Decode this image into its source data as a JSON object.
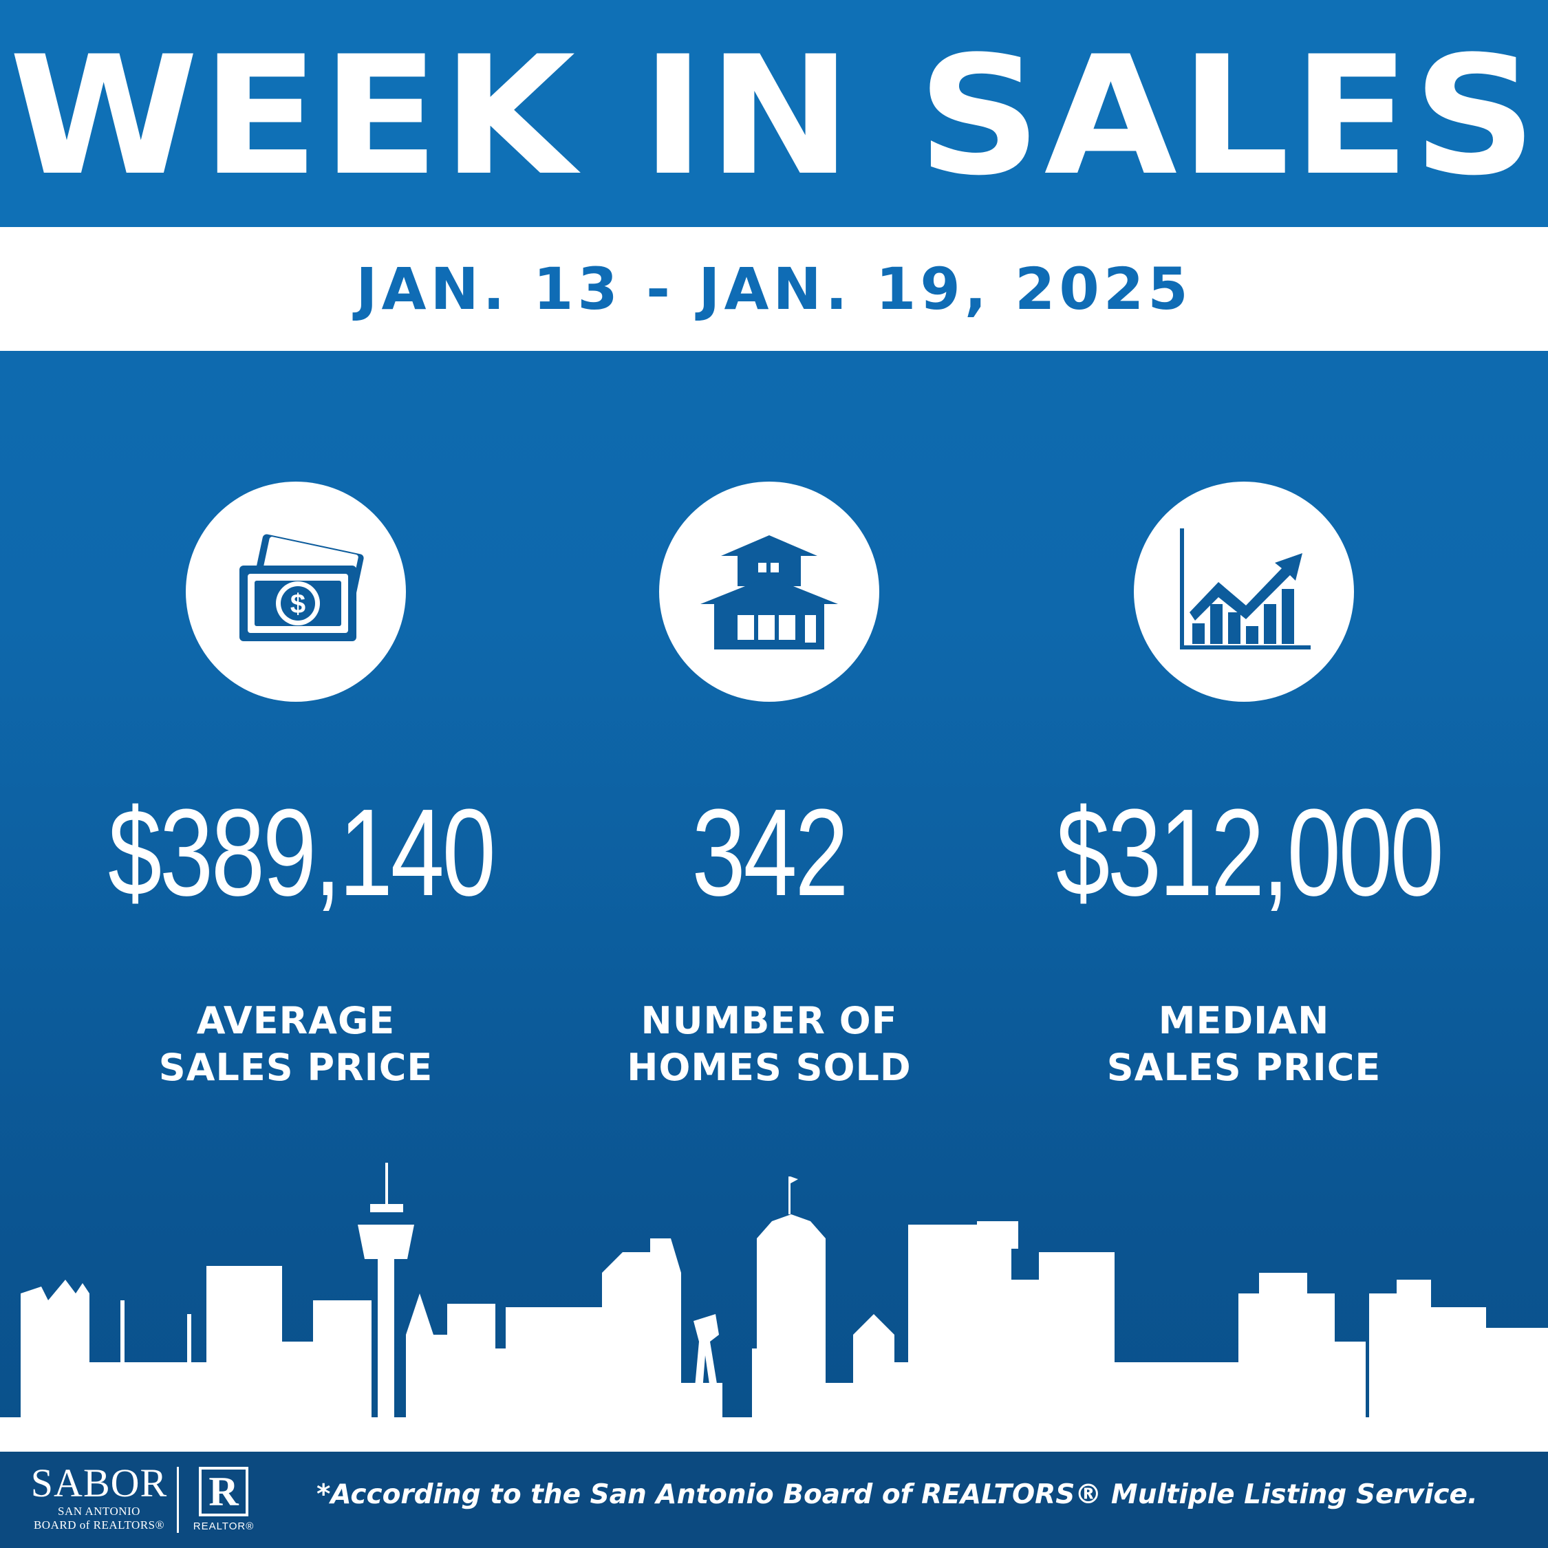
{
  "header": {
    "title": "WEEK IN SALES"
  },
  "date_range": "JAN. 13 - JAN. 19, 2025",
  "stats": [
    {
      "icon": "money-icon",
      "value": "$389,140",
      "label_line1": "AVERAGE",
      "label_line2": "SALES PRICE"
    },
    {
      "icon": "house-icon",
      "value": "342",
      "label_line1": "NUMBER OF",
      "label_line2": "HOMES SOLD"
    },
    {
      "icon": "growth-chart-icon",
      "value": "$312,000",
      "label_line1": "MEDIAN",
      "label_line2": "SALES PRICE"
    }
  ],
  "footer": {
    "logo_name": "SABOR",
    "logo_sub1": "SAN ANTONIO",
    "logo_sub2": "BOARD of REALTORS®",
    "realtor_mark": "R",
    "realtor_word": "REALTOR®",
    "disclaimer": "*According to the San Antonio Board of REALTORS® Multiple Listing Service."
  },
  "colors": {
    "primary": "#0f6db3",
    "dark": "#0c4a80",
    "white": "#ffffff"
  }
}
